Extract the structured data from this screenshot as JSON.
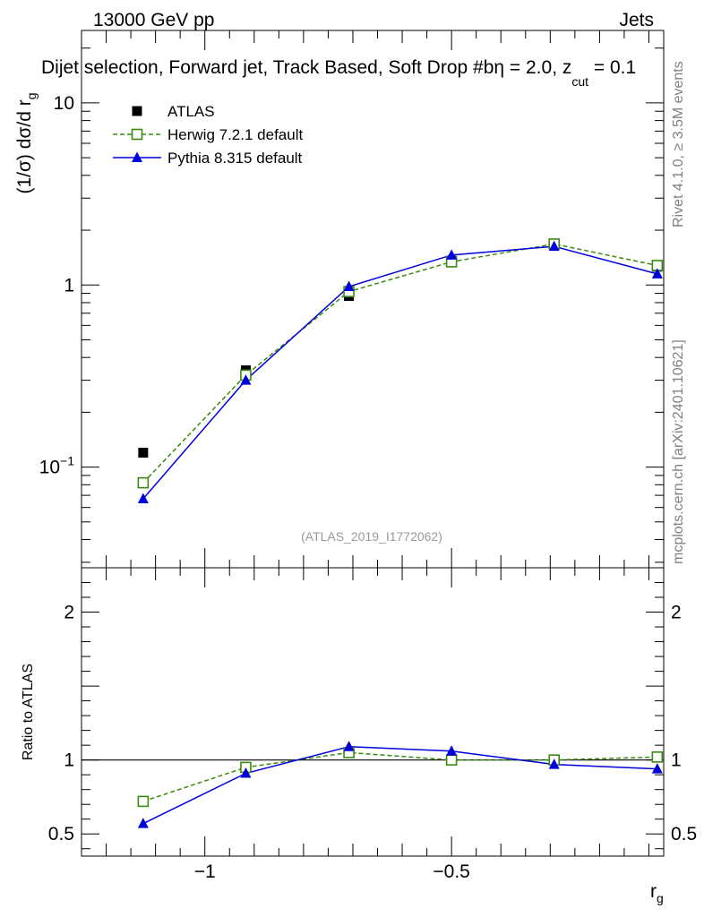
{
  "header": {
    "left": "13000 GeV pp",
    "right": "Jets"
  },
  "plot_title": "Dijet selection, Forward jet, Track Based, Soft Drop #b",
  "plot_title_suffix_a": "η = 2.0, z",
  "plot_title_suffix_sub": "cut",
  "plot_title_suffix_b": " = 0.1",
  "ylabel_main": "(1/σ) dσ/d r",
  "ylabel_main_sub": "g",
  "ylabel_ratio": "Ratio to ATLAS",
  "xlabel": "r",
  "xlabel_sub": "g",
  "watermark": "(ATLAS_2019_I1772062)",
  "side_text_top": "Rivet 4.1.0, ≥ 3.5M events",
  "side_text_bottom": "mcplots.cern.ch [arXiv:2401.10621]",
  "colors": {
    "atlas": "#000000",
    "herwig": "#3a8a10",
    "pythia": "#0000dd"
  },
  "chart_data": {
    "type": "line",
    "x": [
      -1.125,
      -0.917,
      -0.708,
      -0.5,
      -0.292,
      -0.083
    ],
    "main": {
      "yscale": "log",
      "ylim": [
        0.028,
        25
      ],
      "yticks": [
        {
          "v": 10,
          "label": "10"
        },
        {
          "v": 1,
          "label": "1"
        },
        {
          "v": 0.1,
          "label": "10",
          "sup": "−1"
        }
      ],
      "series": [
        {
          "name": "ATLAS",
          "style": "marker-square-filled",
          "values": [
            0.12,
            0.34,
            0.87,
            1.36,
            1.68,
            1.26
          ]
        },
        {
          "name": "Herwig 7.2.1 default",
          "style": "dashed-open-square",
          "values": [
            0.082,
            0.32,
            0.92,
            1.34,
            1.68,
            1.28
          ]
        },
        {
          "name": "Pythia 8.315 default",
          "style": "solid-triangle",
          "values": [
            0.067,
            0.3,
            0.98,
            1.46,
            1.63,
            1.15
          ]
        }
      ]
    },
    "ratio": {
      "ylim": [
        0.35,
        2.3
      ],
      "yticks": [
        {
          "v": 0.5,
          "label": "0.5"
        },
        {
          "v": 1,
          "label": "1"
        },
        {
          "v": 2,
          "label": "2"
        }
      ],
      "series": [
        {
          "name": "Herwig 7.2.1 default",
          "values": [
            0.72,
            0.95,
            1.05,
            1.0,
            1.0,
            1.02
          ]
        },
        {
          "name": "Pythia 8.315 default",
          "values": [
            0.57,
            0.91,
            1.09,
            1.06,
            0.97,
            0.94
          ]
        }
      ]
    },
    "xlim": [
      -1.25,
      -0.07
    ],
    "xticks": [
      {
        "v": -1,
        "label": "−1"
      },
      {
        "v": -0.5,
        "label": "−0.5"
      }
    ],
    "legend": [
      {
        "label": "ATLAS",
        "style": "marker-square-filled"
      },
      {
        "label": "Herwig 7.2.1 default",
        "style": "dashed-open-square"
      },
      {
        "label": "Pythia 8.315 default",
        "style": "solid-triangle"
      }
    ]
  }
}
